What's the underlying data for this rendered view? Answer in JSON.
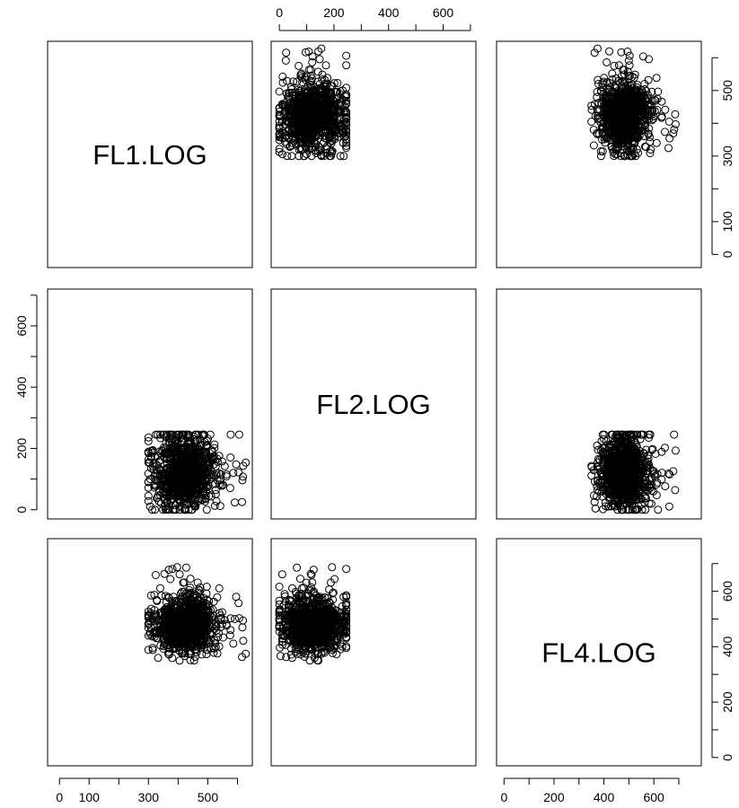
{
  "chart_data": {
    "type": "scatter",
    "layout": "scatterplot-matrix",
    "variables": [
      "FL1.LOG",
      "FL2.LOG",
      "FL4.LOG"
    ],
    "axes": {
      "FL1.LOG": {
        "range": [
          -40,
          650
        ],
        "ticks": [
          0,
          100,
          300,
          500
        ],
        "all_ticks": [
          0,
          100,
          200,
          300,
          400,
          500,
          600
        ]
      },
      "FL2.LOG": {
        "range": [
          -30,
          720
        ],
        "ticks": [
          0,
          200,
          400,
          600
        ],
        "all_ticks": [
          0,
          100,
          200,
          300,
          400,
          500,
          600,
          700
        ]
      },
      "FL4.LOG": {
        "range": [
          -30,
          790
        ],
        "ticks": [
          0,
          200,
          400,
          600
        ],
        "all_ticks": [
          0,
          100,
          200,
          300,
          400,
          500,
          600,
          700
        ]
      }
    },
    "outer_axes": [
      {
        "side": "top",
        "column": 1,
        "variable": "FL2.LOG"
      },
      {
        "side": "bottom",
        "column": 0,
        "variable": "FL1.LOG"
      },
      {
        "side": "bottom",
        "column": 2,
        "variable": "FL4.LOG"
      },
      {
        "side": "left",
        "row": 1,
        "variable": "FL2.LOG"
      },
      {
        "side": "right",
        "row": 0,
        "variable": "FL1.LOG",
        "ticks": [
          0,
          100,
          300,
          500
        ]
      },
      {
        "side": "right",
        "row": 2,
        "variable": "FL4.LOG"
      }
    ],
    "clusters": {
      "FL1.LOG": {
        "min": 300,
        "max": 560,
        "center": 420,
        "spread": 55,
        "outlier_max": 640
      },
      "FL2.LOG": {
        "min": 0,
        "max": 245,
        "center": 120,
        "spread": 60,
        "outlier_max": 245
      },
      "FL4.LOG": {
        "min": 350,
        "max": 600,
        "center": 480,
        "spread": 50,
        "outlier_max": 700
      }
    },
    "grid": false,
    "legend": "none",
    "marker": "open-circle",
    "color": "#000000"
  }
}
